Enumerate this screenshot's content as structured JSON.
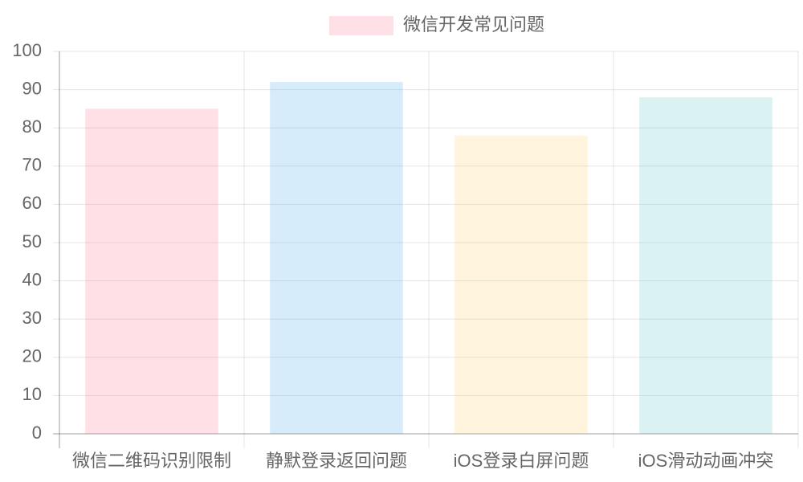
{
  "chart_data": {
    "type": "bar",
    "categories": [
      "微信二维码识别限制",
      "静默登录返回问题",
      "iOS登录白屏问题",
      "iOS滑动动画冲突"
    ],
    "series": [
      {
        "name": "微信开发常见问题",
        "colors": [
          "rgba(255,99,132,0.2)",
          "rgba(54,162,235,0.2)",
          "rgba(255,206,86,0.2)",
          "rgba(75,192,192,0.2)"
        ],
        "values": [
          85,
          92,
          78,
          88
        ]
      }
    ],
    "ylim": [
      0,
      100
    ],
    "yticks": [
      0,
      10,
      20,
      30,
      40,
      50,
      60,
      70,
      80,
      90,
      100
    ],
    "grid": true,
    "legend": "top"
  }
}
